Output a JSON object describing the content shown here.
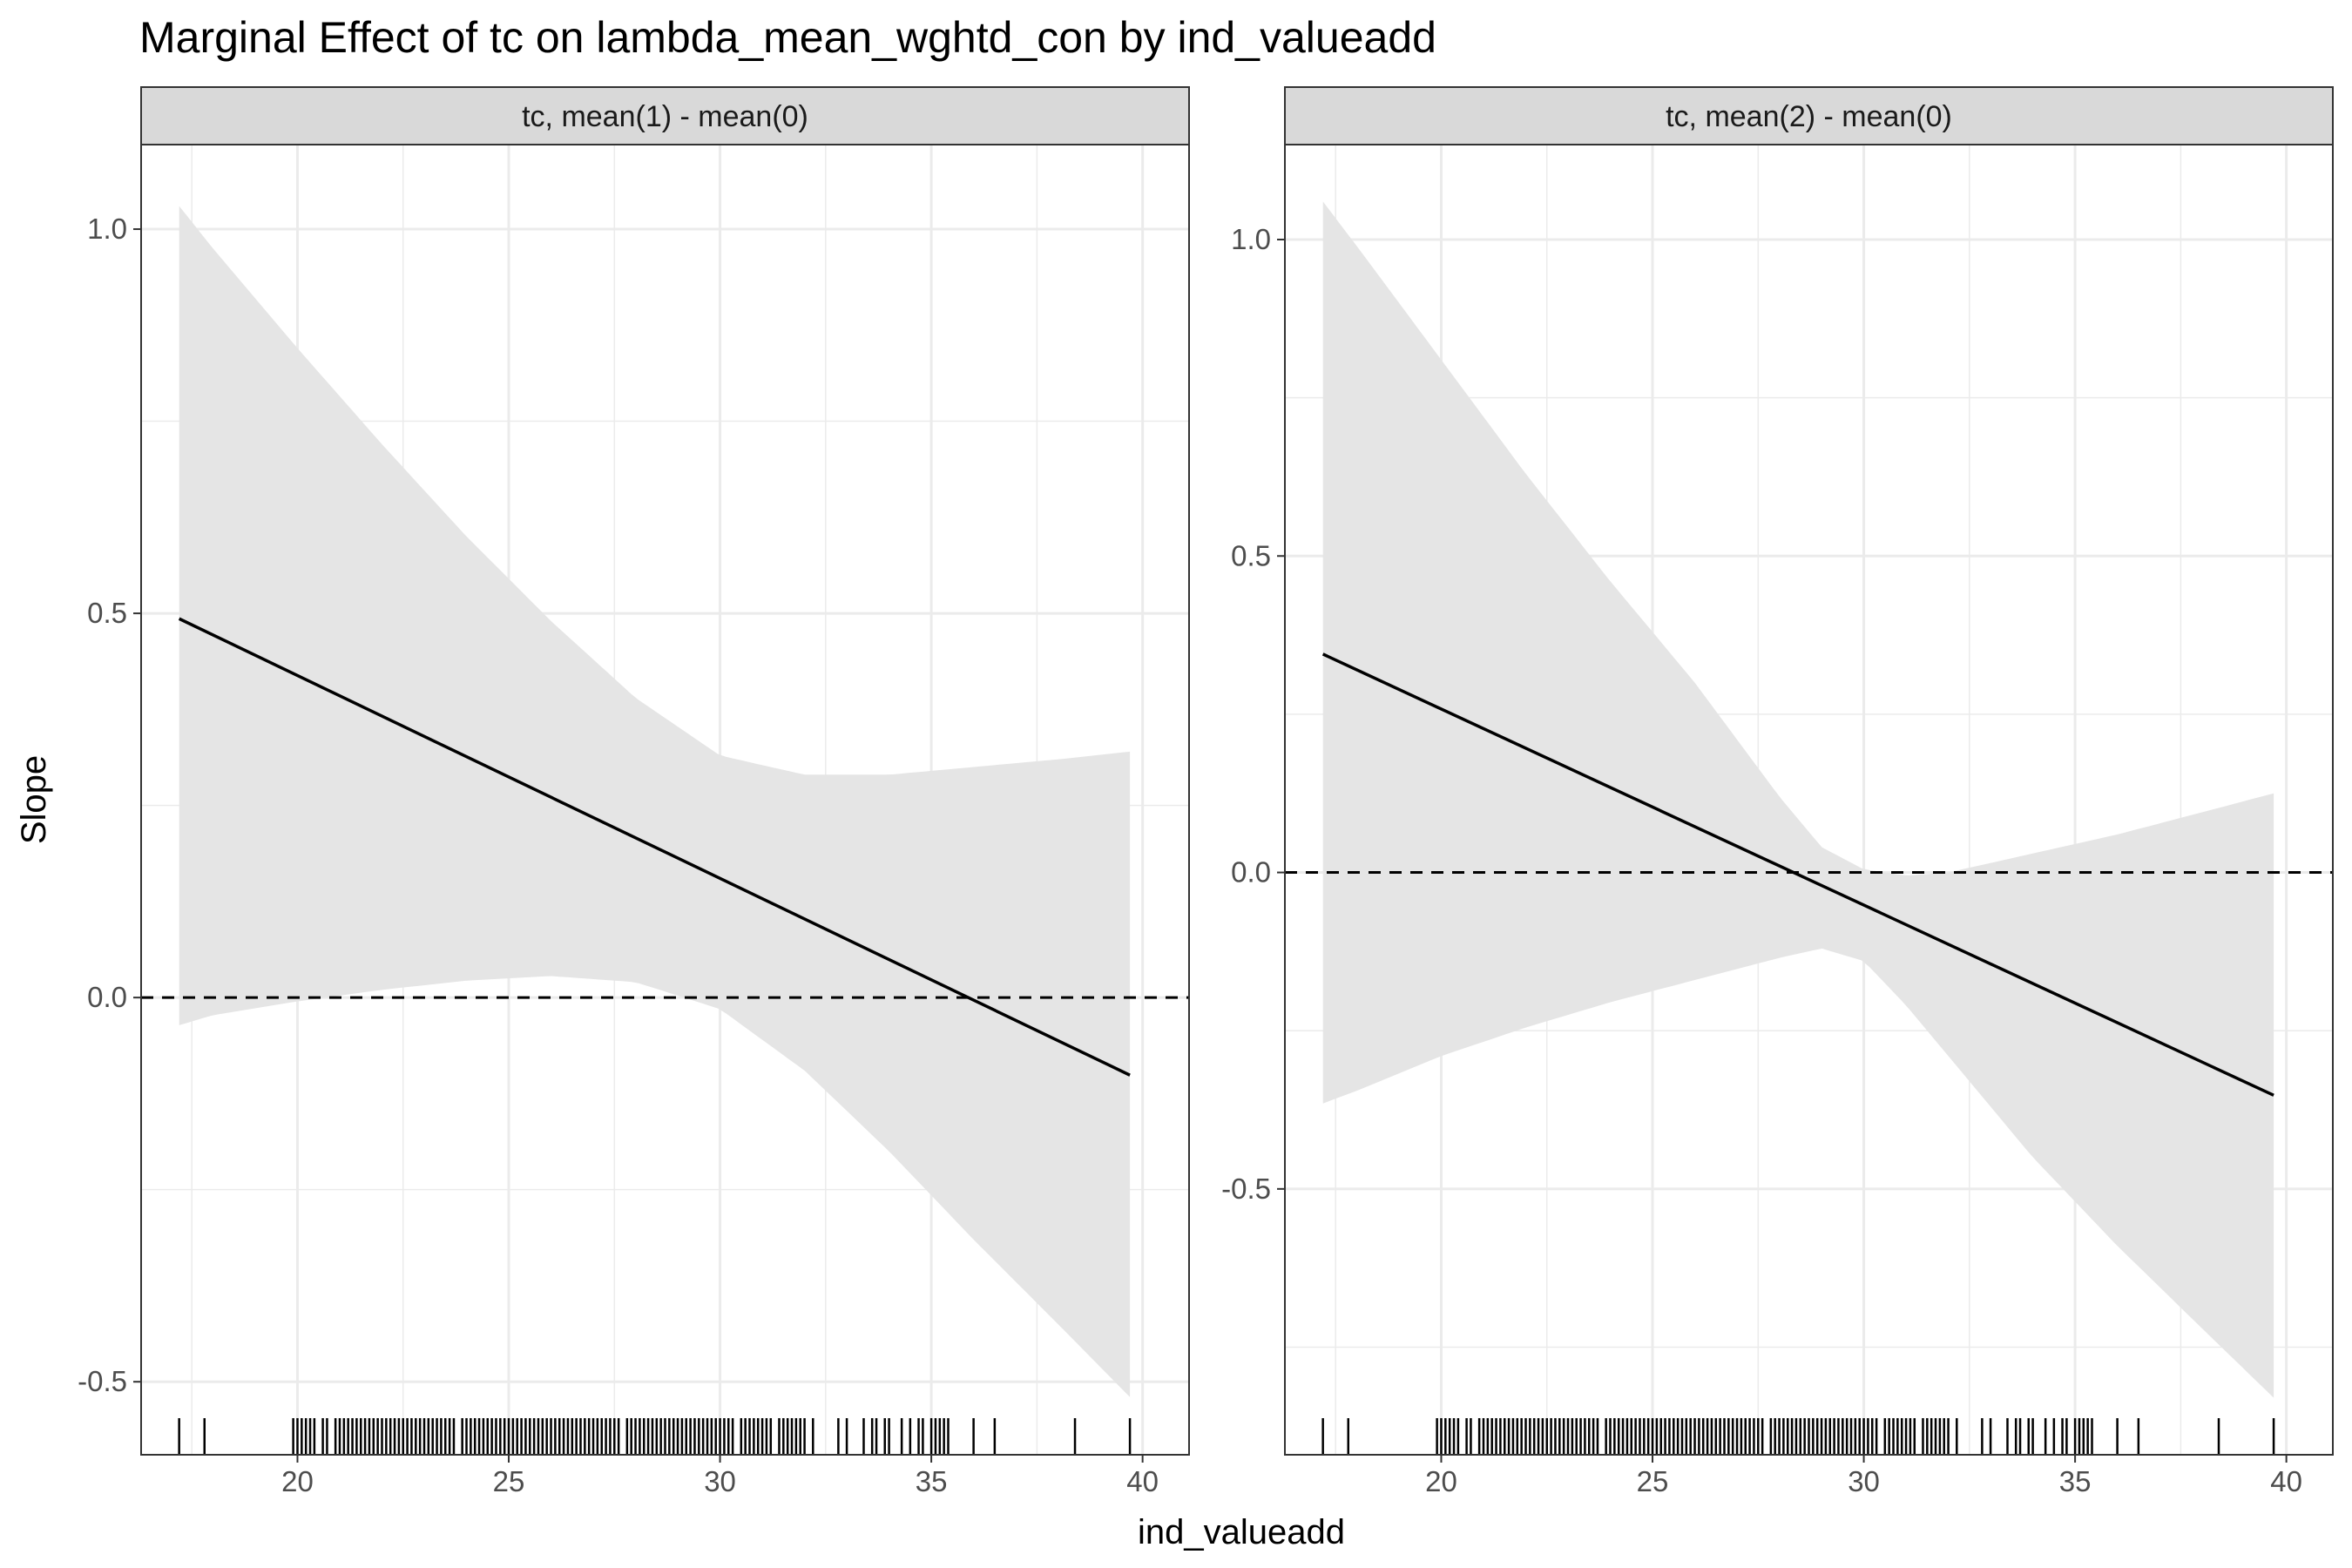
{
  "chart_data": {
    "type": "line",
    "title": "Marginal Effect of tc on lambda_mean_wghtd_con by ind_valueadd",
    "xlabel": "ind_valueadd",
    "ylabel": "Slope",
    "grid": true,
    "legend": "none",
    "reference_line": {
      "y": 0,
      "style": "dashed"
    },
    "colors": {
      "line": "#000000",
      "ribbon": "#e5e5e5",
      "strip": "#d9d9d9",
      "grid": "#ebebeb",
      "panel_border": "#333333"
    },
    "rug": [
      17.2,
      17.8,
      19.9,
      20.0,
      20.1,
      20.2,
      20.3,
      20.4,
      20.6,
      20.7,
      20.9,
      21.0,
      21.1,
      21.2,
      21.3,
      21.4,
      21.5,
      21.6,
      21.7,
      21.8,
      21.9,
      22.0,
      22.1,
      22.2,
      22.3,
      22.4,
      22.5,
      22.6,
      22.7,
      22.8,
      22.9,
      23.0,
      23.1,
      23.2,
      23.3,
      23.4,
      23.5,
      23.6,
      23.7,
      23.9,
      24.0,
      24.1,
      24.2,
      24.3,
      24.4,
      24.5,
      24.6,
      24.7,
      24.8,
      24.9,
      25.0,
      25.1,
      25.2,
      25.3,
      25.4,
      25.5,
      25.6,
      25.7,
      25.8,
      25.9,
      26.0,
      26.1,
      26.2,
      26.3,
      26.4,
      26.5,
      26.6,
      26.7,
      26.8,
      26.9,
      27.0,
      27.1,
      27.2,
      27.3,
      27.4,
      27.5,
      27.6,
      27.8,
      27.9,
      28.0,
      28.1,
      28.2,
      28.3,
      28.4,
      28.5,
      28.6,
      28.7,
      28.8,
      28.9,
      29.0,
      29.1,
      29.2,
      29.3,
      29.4,
      29.5,
      29.6,
      29.7,
      29.8,
      29.9,
      30.0,
      30.1,
      30.2,
      30.3,
      30.5,
      30.6,
      30.7,
      30.8,
      30.9,
      31.0,
      31.1,
      31.2,
      31.4,
      31.5,
      31.6,
      31.7,
      31.8,
      31.9,
      32.0,
      32.2,
      32.8,
      33.0,
      33.4,
      33.6,
      33.7,
      33.9,
      34.0,
      34.3,
      34.5,
      34.7,
      34.8,
      35.0,
      35.1,
      35.2,
      35.3,
      35.4,
      36.0,
      36.5,
      38.4,
      39.7
    ],
    "panels": [
      {
        "strip": "tc, mean(1) - mean(0)",
        "xlim": [
          16.3,
          41.1
        ],
        "ylim": [
          -0.595,
          1.11
        ],
        "xticks": [
          20,
          25,
          30,
          35,
          40
        ],
        "xtick_labels": [
          "20",
          "25",
          "30",
          "35",
          "40"
        ],
        "yticks": [
          -0.5,
          0,
          0.5,
          1
        ],
        "ytick_labels": [
          "-0.5",
          "0.0",
          "0.5",
          "1.0"
        ],
        "line": {
          "x": [
            17.2,
            39.7
          ],
          "y": [
            0.493,
            -0.101
          ]
        },
        "ribbon": {
          "x": [
            17.2,
            18.0,
            20.0,
            22.0,
            24.0,
            26.0,
            28.0,
            30.0,
            32.0,
            34.0,
            36.0,
            38.0,
            39.7
          ],
          "upper": [
            1.03,
            0.975,
            0.845,
            0.72,
            0.6,
            0.49,
            0.39,
            0.315,
            0.29,
            0.29,
            0.3,
            0.31,
            0.32
          ],
          "lower": [
            -0.036,
            -0.023,
            -0.005,
            0.01,
            0.022,
            0.028,
            0.02,
            -0.015,
            -0.095,
            -0.2,
            -0.315,
            -0.425,
            -0.52
          ]
        }
      },
      {
        "strip": "tc, mean(2) - mean(0)",
        "xlim": [
          16.3,
          41.1
        ],
        "ylim": [
          -0.92,
          1.15
        ],
        "xticks": [
          20,
          25,
          30,
          35,
          40
        ],
        "xtick_labels": [
          "20",
          "25",
          "30",
          "35",
          "40"
        ],
        "yticks": [
          -0.5,
          0,
          0.5,
          1
        ],
        "ytick_labels": [
          "-0.5",
          "0.0",
          "0.5",
          "1.0"
        ],
        "line": {
          "x": [
            17.2,
            39.7
          ],
          "y": [
            0.345,
            -0.352
          ]
        },
        "ribbon": {
          "x": [
            17.2,
            18.0,
            20.0,
            22.0,
            24.0,
            26.0,
            28.0,
            29.0,
            30.0,
            31.0,
            32.0,
            34.0,
            36.0,
            38.0,
            39.7
          ],
          "upper": [
            1.06,
            0.99,
            0.81,
            0.63,
            0.46,
            0.3,
            0.12,
            0.04,
            0.005,
            -0.005,
            0.0,
            0.03,
            0.06,
            0.095,
            0.125
          ],
          "lower": [
            -0.365,
            -0.345,
            -0.29,
            -0.245,
            -0.205,
            -0.17,
            -0.135,
            -0.12,
            -0.14,
            -0.21,
            -0.29,
            -0.45,
            -0.59,
            -0.72,
            -0.83
          ]
        }
      }
    ]
  }
}
